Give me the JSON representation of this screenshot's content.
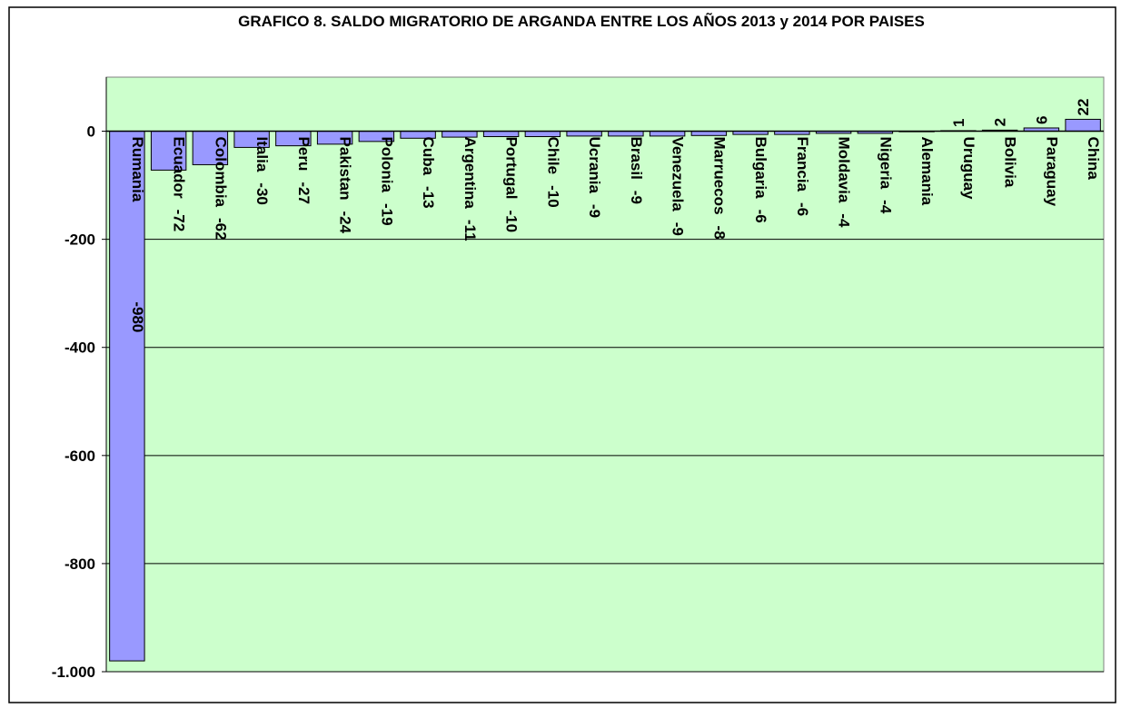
{
  "chart_data": {
    "type": "bar",
    "title": "GRAFICO 8. SALDO MIGRATORIO DE ARGANDA ENTRE LOS AÑOS 2013 y 2014 POR PAISES",
    "categories": [
      "Rumania",
      "Ecuador",
      "Colombia",
      "Italia",
      "Peru",
      "Pakistan",
      "Polonia",
      "Cuba",
      "Argentina",
      "Portugal",
      "Chile",
      "Ucrania",
      "Brasil",
      "Venezuela",
      "Marruecos",
      "Bulgaria",
      "Francia",
      "Moldavia",
      "Nigeria",
      "Alemania",
      "Uruguay",
      "Bolivia",
      "Paraguay",
      "China"
    ],
    "values": [
      -980,
      -72,
      -62,
      -30,
      -27,
      -24,
      -19,
      -13,
      -11,
      -10,
      -10,
      -9,
      -9,
      -9,
      -8,
      -6,
      -6,
      -4,
      -4,
      -1,
      1,
      2,
      6,
      22
    ],
    "value_labels": [
      "-980",
      "-72",
      "-62",
      "-30",
      "-27",
      "-24",
      "-19",
      "-13",
      "-11",
      "-10",
      "-10",
      "-9",
      "-9",
      "-9",
      "-8",
      "-6",
      "-6",
      "-4",
      "-4",
      null,
      "1",
      "2",
      "6",
      "22"
    ],
    "color": "#9999ff",
    "background": "#ccffcc",
    "ylim": [
      -1000,
      100
    ],
    "yticks": [
      {
        "value": -1000,
        "label": "-1.000"
      },
      -800,
      -600,
      -400,
      -200,
      0
    ],
    "grid": true
  }
}
